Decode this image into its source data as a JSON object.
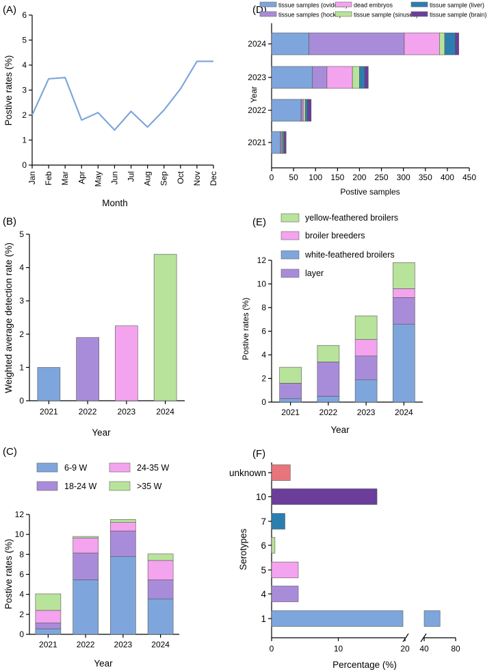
{
  "colors": {
    "blue": "#7ea6dc",
    "purple": "#a98cd9",
    "pink": "#f4a3ee",
    "green": "#b8e39a",
    "teal": "#2b7fb0",
    "darkpurple": "#6a3e9a",
    "red": "#e8747c",
    "line": "#7ea6dc"
  },
  "chart_data": [
    {
      "panel": "(A)",
      "type": "line",
      "title": "",
      "xlabel": "Month",
      "ylabel": "Postive rates (%)",
      "categories": [
        "Jan",
        "Feb",
        "Mar",
        "Apr",
        "May",
        "Jun",
        "Jul",
        "Aug",
        "Sep",
        "Oct",
        "Nov",
        "Dec"
      ],
      "values": [
        2.0,
        3.45,
        3.5,
        1.8,
        2.1,
        1.4,
        2.15,
        1.52,
        2.2,
        3.05,
        4.15,
        4.15
      ],
      "yticks": [
        0,
        1,
        2,
        3,
        4,
        5,
        6
      ],
      "ylim": [
        0,
        6
      ]
    },
    {
      "panel": "(B)",
      "type": "bar",
      "xlabel": "Year",
      "ylabel": "Weighted average detection rate (%)",
      "categories": [
        "2021",
        "2022",
        "2023",
        "2024"
      ],
      "values": [
        1.0,
        1.9,
        2.25,
        4.4
      ],
      "bar_colors": [
        "blue",
        "purple",
        "pink",
        "green"
      ],
      "yticks": [
        0,
        1,
        2,
        3,
        4,
        5
      ],
      "ylim": [
        0,
        5
      ]
    },
    {
      "panel": "(C)",
      "type": "bar",
      "stacked": true,
      "xlabel": "Year",
      "ylabel": "Postive rates (%)",
      "categories": [
        "2021",
        "2022",
        "2023",
        "2024"
      ],
      "series": [
        {
          "name": "6-9 W",
          "color": "blue",
          "values": [
            0.55,
            5.45,
            7.8,
            3.55
          ]
        },
        {
          "name": "18-24 W",
          "color": "purple",
          "values": [
            0.6,
            2.7,
            2.55,
            1.9
          ]
        },
        {
          "name": "24-35 W",
          "color": "pink",
          "values": [
            1.25,
            1.5,
            0.85,
            1.95
          ]
        },
        {
          "name": ">35 W",
          "color": "green",
          "values": [
            1.65,
            0.15,
            0.3,
            0.65
          ]
        }
      ],
      "legend_order": [
        "6-9 W",
        "24-35 W",
        "18-24 W",
        ">35 W"
      ],
      "yticks": [
        0,
        2,
        4,
        6,
        8,
        10,
        12
      ],
      "ylim": [
        0,
        12
      ]
    },
    {
      "panel": "(D)",
      "type": "bar",
      "orientation": "horizontal",
      "stacked": true,
      "xlabel": "Postive samples",
      "ylabel": "Year",
      "categories": [
        "2024",
        "2023",
        "2022",
        "2021"
      ],
      "series": [
        {
          "name": "tissue samples (oviducts)",
          "color": "blue",
          "values": [
            85,
            93,
            67,
            20
          ]
        },
        {
          "name": "tissue samples (hocks)",
          "color": "purple",
          "values": [
            217,
            33,
            3,
            2
          ]
        },
        {
          "name": "dead embryos",
          "color": "pink",
          "values": [
            80,
            58,
            3,
            2
          ]
        },
        {
          "name": "tissue sample (sinuses)",
          "color": "green",
          "values": [
            12,
            16,
            4,
            2
          ]
        },
        {
          "name": "tissue sample (liver)",
          "color": "teal",
          "values": [
            24,
            12,
            5,
            3
          ]
        },
        {
          "name": "tissue sample (brain)",
          "color": "darkpurple",
          "values": [
            8,
            8,
            8,
            4
          ]
        }
      ],
      "legend_order": [
        "tissue samples (oviducts)",
        "dead embryos",
        "tissue sample (liver)",
        "tissue samples (hocks)",
        "tissue sample (sinuses)",
        "tissue sample (brain)"
      ],
      "xticks": [
        0,
        50,
        100,
        150,
        200,
        250,
        300,
        350,
        400,
        450
      ],
      "xlim": [
        0,
        450
      ]
    },
    {
      "panel": "(E)",
      "type": "bar",
      "stacked": true,
      "xlabel": "Year",
      "ylabel": "Postive rates (%)",
      "categories": [
        "2021",
        "2022",
        "2023",
        "2024"
      ],
      "series": [
        {
          "name": "white-feathered broilers",
          "color": "blue",
          "values": [
            0.3,
            0.5,
            1.9,
            6.6
          ]
        },
        {
          "name": "layer",
          "color": "purple",
          "values": [
            1.3,
            2.9,
            2.0,
            2.25
          ]
        },
        {
          "name": "broiler breeders",
          "color": "pink",
          "values": [
            0.0,
            0.0,
            1.4,
            0.75
          ]
        },
        {
          "name": "yellow-feathered broilers",
          "color": "green",
          "values": [
            1.35,
            1.4,
            2.0,
            2.2
          ]
        }
      ],
      "legend_order": [
        "yellow-feathered broilers",
        "broiler breeders",
        "white-feathered broilers",
        "layer"
      ],
      "yticks": [
        0,
        2,
        4,
        6,
        8,
        10,
        12
      ],
      "ylim": [
        0,
        12
      ]
    },
    {
      "panel": "(F)",
      "type": "bar",
      "orientation": "horizontal",
      "broken_axis": true,
      "xlabel": "Percentage (%)",
      "ylabel": "Serotypes",
      "categories": [
        "unknown",
        "10",
        "7",
        "6",
        "5",
        "4",
        "1"
      ],
      "values": [
        2.8,
        15.8,
        2.0,
        0.5,
        4.0,
        4.0,
        68.0
      ],
      "bar_colors": [
        "red",
        "darkpurple",
        "teal",
        "green",
        "pink",
        "purple",
        "blue"
      ],
      "segments": [
        {
          "range": [
            0,
            20
          ],
          "ticks": [
            "0",
            "10",
            "20"
          ]
        },
        {
          "range": [
            40,
            80
          ],
          "ticks": [
            "40",
            "80"
          ]
        }
      ]
    }
  ]
}
